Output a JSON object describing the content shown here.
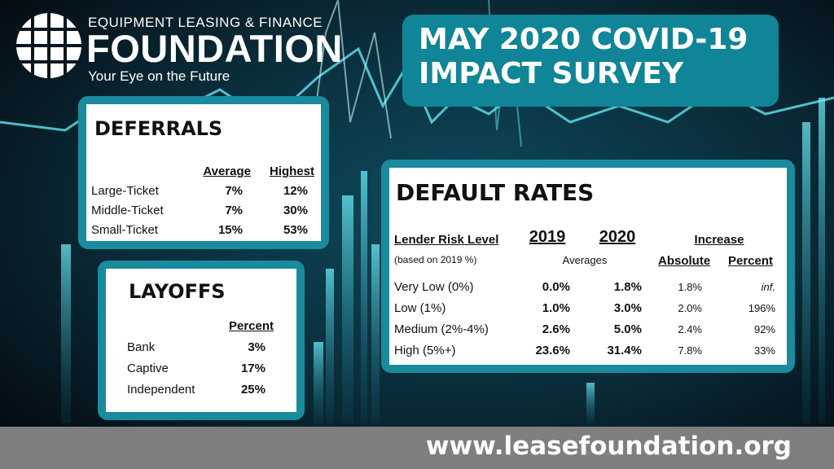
{
  "logo": {
    "org_line": "EQUIPMENT LEASING & FINANCE",
    "name": "FOUNDATION",
    "tagline": "Your Eye on the Future"
  },
  "title": {
    "line1": "MAY 2020 COVID-19",
    "line2": "IMPACT SURVEY"
  },
  "deferrals": {
    "heading": "DEFERRALS",
    "col_average": "Average",
    "col_highest": "Highest",
    "rows": [
      {
        "label": "Large-Ticket",
        "average": "7%",
        "highest": "12%"
      },
      {
        "label": "Middle-Ticket",
        "average": "7%",
        "highest": "30%"
      },
      {
        "label": "Small-Ticket",
        "average": "15%",
        "highest": "53%"
      }
    ]
  },
  "layoffs": {
    "heading": "LAYOFFS",
    "col_percent": "Percent",
    "rows": [
      {
        "label": "Bank",
        "percent": "3%"
      },
      {
        "label": "Captive",
        "percent": "17%"
      },
      {
        "label": "Independent",
        "percent": "25%"
      }
    ]
  },
  "default_rates": {
    "heading": "DEFAULT RATES",
    "col_risk": "Lender Risk Level",
    "col_risk_note": "(based on 2019 %)",
    "col_2019": "2019",
    "col_2020": "2020",
    "averages_label": "Averages",
    "increase_label": "Increase",
    "col_absolute": "Absolute",
    "col_percent": "Percent",
    "rows": [
      {
        "label": "Very Low (0%)",
        "y2019": "0.0%",
        "y2020": "1.8%",
        "absolute": "1.8%",
        "percent": "inf."
      },
      {
        "label": "Low (1%)",
        "y2019": "1.0%",
        "y2020": "3.0%",
        "absolute": "2.0%",
        "percent": "196%"
      },
      {
        "label": "Medium (2%-4%)",
        "y2019": "2.6%",
        "y2020": "5.0%",
        "absolute": "2.4%",
        "percent": "92%"
      },
      {
        "label": "High (5%+)",
        "y2019": "23.6%",
        "y2020": "31.4%",
        "absolute": "7.8%",
        "percent": "33%"
      }
    ]
  },
  "footer": {
    "url": "www.leasefoundation.org"
  },
  "colors": {
    "accent": "#1a8b9c",
    "title_bg": "#0f8597",
    "footer_bg": "#7f7f7f",
    "background": "#06161f"
  }
}
